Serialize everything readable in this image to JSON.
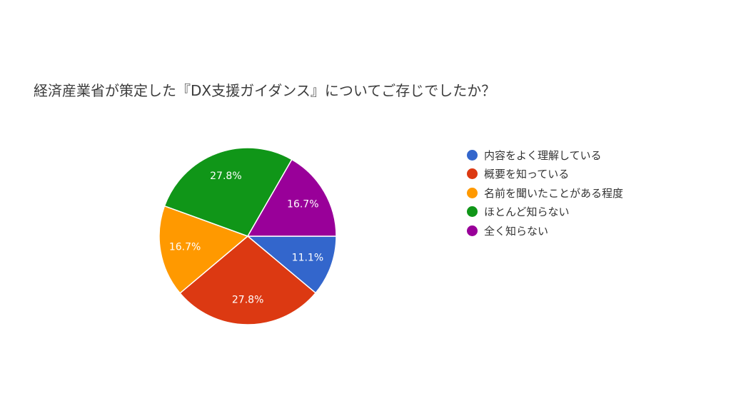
{
  "chart_data": {
    "type": "pie",
    "title": "経済産業省が策定した『DX支援ガイダンス』についてご存じでしたか？",
    "legend_position": "right",
    "slices": [
      {
        "label": "内容をよく理解している",
        "value": 11.1,
        "display": "11.1%",
        "color": "#3366cc"
      },
      {
        "label": "概要を知っている",
        "value": 27.8,
        "display": "27.8%",
        "color": "#dc3912"
      },
      {
        "label": "名前を聞いたことがある程度",
        "value": 16.7,
        "display": "16.7%",
        "color": "#ff9900"
      },
      {
        "label": "ほとんど知らない",
        "value": 27.8,
        "display": "27.8%",
        "color": "#109618"
      },
      {
        "label": "全く知らない",
        "value": 16.7,
        "display": "16.7%",
        "color": "#990099"
      }
    ]
  }
}
